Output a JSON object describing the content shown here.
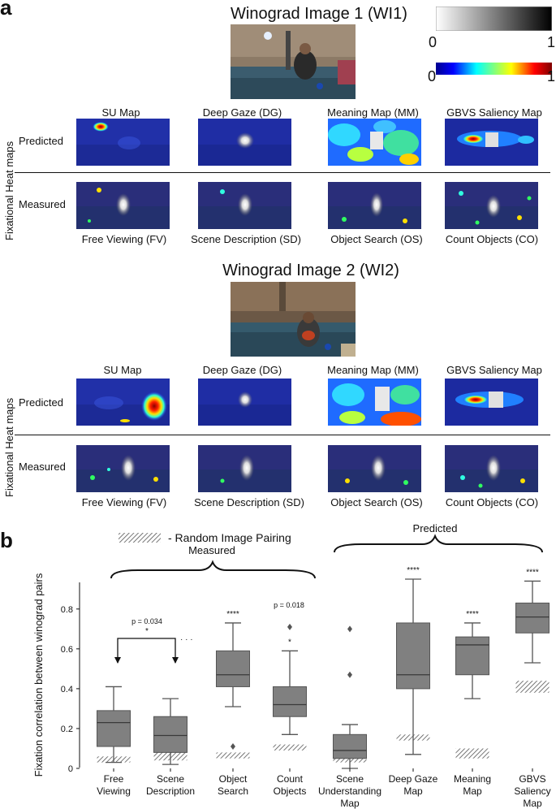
{
  "panel_a": {
    "letter": "a",
    "row_axis_label": "Fixational Heat maps",
    "row_predicted": "Predicted",
    "row_measured": "Measured",
    "colorbar_gray": {
      "min": "0",
      "max": "1"
    },
    "colorbar_jet": {
      "min": "0",
      "max": "1"
    },
    "images": [
      {
        "title": "Winograd Image 1 (WI1)",
        "predicted_maps": [
          "SU  Map",
          "Deep Gaze (DG)",
          "Meaning Map (MM)",
          "GBVS Saliency Map"
        ],
        "measured_maps": [
          "Free Viewing (FV)",
          "Scene Description (SD)",
          "Object Search (OS)",
          "Count Objects (CO)"
        ]
      },
      {
        "title": "Winograd Image 2  (WI2)",
        "predicted_maps": [
          "SU Map",
          "Deep Gaze (DG)",
          "Meaning Map (MM)",
          "GBVS Saliency Map"
        ],
        "measured_maps": [
          "Free Viewing (FV)",
          "Scene Description  (SD)",
          "Object Search (OS)",
          "Count Objects (CO)"
        ]
      }
    ]
  },
  "panel_b": {
    "letter": "b",
    "legend_label": "- Random Image Pairing",
    "group_measured": "Measured",
    "group_predicted": "Predicted",
    "p_fv_sd": "p = 0.034",
    "p_fv_sd_star": "*",
    "p_fv_sd_dots": "· · ·",
    "p_co": "p = 0.018",
    "colors": {
      "box": "#808080",
      "edge": "#555555",
      "text": "#111111"
    }
  },
  "chart_data": {
    "type": "box",
    "ylabel": "Fixation correlation between winograd pairs",
    "ylim": [
      0,
      0.95
    ],
    "yticks": [
      "0",
      "0.2",
      "0.4",
      "0.6",
      "0.8"
    ],
    "categories": [
      "Free Viewing",
      "Scene Description",
      "Object Search",
      "Count Objects",
      "Scene Understanding Map",
      "Deep Gaze Map",
      "Meaning Map",
      "GBVS Saliency Map"
    ],
    "category_labels": [
      [
        "Free",
        "Viewing"
      ],
      [
        "Scene",
        "Description"
      ],
      [
        "Object",
        "Search"
      ],
      [
        "Count",
        "Objects"
      ],
      [
        "Scene",
        "Understanding",
        "Map"
      ],
      [
        "Deep Gaze",
        "Map"
      ],
      [
        "Meaning",
        "Map"
      ],
      [
        "GBVS",
        "Saliency",
        "Map"
      ]
    ],
    "series": [
      {
        "name": "Fixation correlation",
        "boxes": [
          {
            "whislo": 0.03,
            "q1": 0.11,
            "med": 0.23,
            "q3": 0.29,
            "whishi": 0.41,
            "fliers": [],
            "sig": ""
          },
          {
            "whislo": 0.02,
            "q1": 0.08,
            "med": 0.165,
            "q3": 0.26,
            "whishi": 0.35,
            "fliers": [],
            "sig": ""
          },
          {
            "whislo": 0.31,
            "q1": 0.41,
            "med": 0.47,
            "q3": 0.59,
            "whishi": 0.73,
            "fliers": [
              0.11
            ],
            "sig": "****"
          },
          {
            "whislo": 0.17,
            "q1": 0.26,
            "med": 0.32,
            "q3": 0.41,
            "whishi": 0.59,
            "fliers": [
              0.71
            ],
            "sig": "*"
          },
          {
            "whislo": 0.0,
            "q1": 0.05,
            "med": 0.09,
            "q3": 0.17,
            "whishi": 0.22,
            "fliers": [
              0.47,
              0.7
            ],
            "sig": ""
          },
          {
            "whislo": 0.07,
            "q1": 0.4,
            "med": 0.47,
            "q3": 0.73,
            "whishi": 0.95,
            "fliers": [],
            "sig": "****"
          },
          {
            "whislo": 0.35,
            "q1": 0.47,
            "med": 0.62,
            "q3": 0.66,
            "whishi": 0.73,
            "fliers": [],
            "sig": "****"
          },
          {
            "whislo": 0.53,
            "q1": 0.68,
            "med": 0.76,
            "q3": 0.83,
            "whishi": 0.94,
            "fliers": [],
            "sig": "****"
          }
        ]
      },
      {
        "name": "Random Image Pairing",
        "ranges": [
          [
            0.03,
            0.06
          ],
          [
            0.04,
            0.08
          ],
          [
            0.05,
            0.08
          ],
          [
            0.09,
            0.12
          ],
          [
            0.03,
            0.1
          ],
          [
            0.14,
            0.17
          ],
          [
            0.05,
            0.1
          ],
          [
            0.38,
            0.44
          ]
        ]
      }
    ]
  }
}
